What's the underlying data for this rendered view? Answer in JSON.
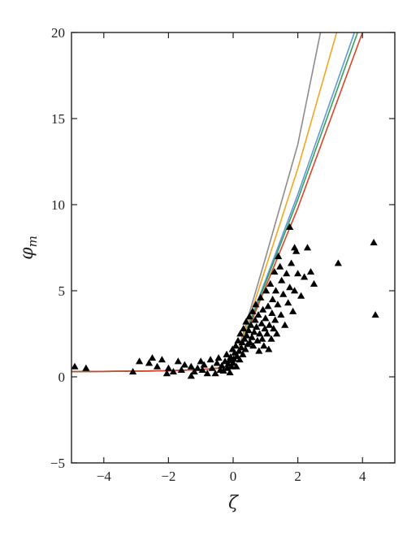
{
  "chart_data": {
    "type": "scatter",
    "title": "",
    "xlabel": "ζ",
    "ylabel": "φ",
    "ylabel_subscript": "m",
    "xlim": [
      -5,
      5
    ],
    "ylim": [
      -5,
      20
    ],
    "xticks": [
      -4,
      -2,
      0,
      2,
      4
    ],
    "yticks": [
      -5,
      0,
      5,
      10,
      15,
      20
    ],
    "xtick_labels": [
      "−4",
      "−2",
      "0",
      "2",
      "4"
    ],
    "ytick_labels": [
      "−5",
      "0",
      "5",
      "10",
      "15",
      "20"
    ],
    "grid": false,
    "legend": "none",
    "scatter": {
      "marker": "triangle",
      "color": "#000000",
      "points": [
        [
          -4.9,
          0.6
        ],
        [
          -4.55,
          0.5
        ],
        [
          -3.1,
          0.3
        ],
        [
          -2.9,
          0.9
        ],
        [
          -2.6,
          0.8
        ],
        [
          -2.5,
          1.1
        ],
        [
          -2.35,
          0.6
        ],
        [
          -2.2,
          1.0
        ],
        [
          -2.05,
          0.2
        ],
        [
          -2.0,
          0.5
        ],
        [
          -1.85,
          0.3
        ],
        [
          -1.7,
          0.9
        ],
        [
          -1.6,
          0.4
        ],
        [
          -1.5,
          0.7
        ],
        [
          -1.3,
          0.6
        ],
        [
          -1.3,
          0.05
        ],
        [
          -1.2,
          0.3
        ],
        [
          -1.1,
          0.5
        ],
        [
          -1.0,
          0.9
        ],
        [
          -0.95,
          0.4
        ],
        [
          -0.9,
          0.7
        ],
        [
          -0.8,
          0.2
        ],
        [
          -0.7,
          1.0
        ],
        [
          -0.65,
          0.5
        ],
        [
          -0.55,
          0.2
        ],
        [
          -0.5,
          0.8
        ],
        [
          -0.45,
          1.1
        ],
        [
          -0.4,
          0.4
        ],
        [
          -0.35,
          0.65
        ],
        [
          -0.3,
          0.35
        ],
        [
          -0.25,
          0.9
        ],
        [
          -0.2,
          1.3
        ],
        [
          -0.18,
          0.5
        ],
        [
          -0.15,
          0.75
        ],
        [
          -0.12,
          0.95
        ],
        [
          -0.1,
          0.25
        ],
        [
          -0.08,
          1.15
        ],
        [
          -0.05,
          0.6
        ],
        [
          -0.02,
          1.6
        ],
        [
          0.0,
          0.8
        ],
        [
          0.02,
          1.05
        ],
        [
          0.05,
          1.4
        ],
        [
          0.08,
          1.8
        ],
        [
          0.1,
          0.6
        ],
        [
          0.12,
          1.2
        ],
        [
          0.15,
          2.1
        ],
        [
          0.18,
          1.5
        ],
        [
          0.2,
          1.0
        ],
        [
          0.22,
          2.5
        ],
        [
          0.25,
          1.7
        ],
        [
          0.28,
          2.0
        ],
        [
          0.3,
          1.3
        ],
        [
          0.32,
          2.8
        ],
        [
          0.35,
          2.2
        ],
        [
          0.38,
          1.6
        ],
        [
          0.4,
          3.2
        ],
        [
          0.42,
          2.4
        ],
        [
          0.45,
          1.9
        ],
        [
          0.48,
          2.7
        ],
        [
          0.5,
          3.5
        ],
        [
          0.52,
          2.0
        ],
        [
          0.55,
          3.0
        ],
        [
          0.58,
          2.3
        ],
        [
          0.6,
          3.8
        ],
        [
          0.62,
          1.8
        ],
        [
          0.65,
          2.6
        ],
        [
          0.68,
          3.3
        ],
        [
          0.7,
          4.2
        ],
        [
          0.72,
          2.9
        ],
        [
          0.75,
          2.1
        ],
        [
          0.78,
          3.6
        ],
        [
          0.8,
          1.5
        ],
        [
          0.82,
          2.5
        ],
        [
          0.85,
          4.6
        ],
        [
          0.88,
          3.1
        ],
        [
          0.9,
          2.2
        ],
        [
          0.92,
          3.9
        ],
        [
          0.95,
          1.8
        ],
        [
          0.98,
          2.8
        ],
        [
          1.0,
          3.4
        ],
        [
          1.02,
          5.0
        ],
        [
          1.05,
          2.5
        ],
        [
          1.08,
          4.1
        ],
        [
          1.1,
          1.6
        ],
        [
          1.12,
          3.0
        ],
        [
          1.15,
          5.4
        ],
        [
          1.18,
          2.2
        ],
        [
          1.2,
          3.7
        ],
        [
          1.22,
          4.5
        ],
        [
          1.25,
          2.8
        ],
        [
          1.28,
          6.1
        ],
        [
          1.3,
          3.3
        ],
        [
          1.32,
          5.0
        ],
        [
          1.35,
          2.5
        ],
        [
          1.38,
          4.2
        ],
        [
          1.4,
          7.0
        ],
        [
          1.45,
          6.4
        ],
        [
          1.48,
          3.6
        ],
        [
          1.5,
          5.6
        ],
        [
          1.55,
          4.8
        ],
        [
          1.6,
          3.0
        ],
        [
          1.65,
          6.0
        ],
        [
          1.7,
          4.3
        ],
        [
          1.75,
          5.2
        ],
        [
          1.8,
          6.6
        ],
        [
          1.85,
          3.8
        ],
        [
          1.9,
          5.0
        ],
        [
          1.95,
          7.3
        ],
        [
          2.0,
          6.0
        ],
        [
          2.1,
          4.7
        ],
        [
          2.2,
          5.8
        ],
        [
          2.3,
          7.5
        ],
        [
          2.4,
          6.1
        ],
        [
          2.5,
          5.4
        ],
        [
          1.75,
          8.7
        ],
        [
          1.9,
          7.5
        ],
        [
          3.25,
          6.6
        ],
        [
          4.35,
          7.8
        ],
        [
          4.4,
          3.6
        ]
      ]
    },
    "series": [
      {
        "color": "#8c8c8c",
        "x": [
          -5,
          -2,
          -1,
          -0.5,
          -0.2,
          0,
          0.05,
          0.1,
          0.2,
          0.3,
          0.5,
          1.0,
          2.0,
          2.7
        ],
        "y": [
          0.3,
          0.35,
          0.42,
          0.5,
          0.6,
          0.75,
          0.95,
          1.25,
          1.85,
          2.45,
          3.7,
          6.9,
          13.5,
          20.0
        ]
      },
      {
        "color": "#f2a623",
        "x": [
          -5,
          -2,
          -1,
          -0.5,
          -0.2,
          0,
          0.05,
          0.1,
          0.2,
          0.3,
          0.5,
          1.0,
          2.0,
          3.2
        ],
        "y": [
          0.3,
          0.35,
          0.42,
          0.5,
          0.6,
          0.75,
          0.93,
          1.2,
          1.75,
          2.3,
          3.4,
          6.3,
          12.1,
          20.0
        ]
      },
      {
        "color": "#5b9bd5",
        "x": [
          -5,
          -2,
          -1,
          -0.5,
          -0.2,
          0,
          0.05,
          0.1,
          0.2,
          0.3,
          0.5,
          1.0,
          2.0,
          3.75
        ],
        "y": [
          0.3,
          0.35,
          0.42,
          0.5,
          0.6,
          0.75,
          0.9,
          1.15,
          1.65,
          2.15,
          3.15,
          5.6,
          10.6,
          20.0
        ]
      },
      {
        "color": "#3a9e5a",
        "x": [
          -5,
          -2,
          -1,
          -0.5,
          -0.2,
          0,
          0.05,
          0.1,
          0.2,
          0.3,
          0.5,
          1.0,
          2.0,
          3.85
        ],
        "y": [
          0.3,
          0.35,
          0.42,
          0.5,
          0.6,
          0.75,
          0.9,
          1.13,
          1.6,
          2.1,
          3.05,
          5.45,
          10.3,
          20.0
        ]
      },
      {
        "color": "#d9452b",
        "x": [
          -5,
          -2,
          -1,
          -0.5,
          -0.2,
          0,
          0.05,
          0.1,
          0.2,
          0.3,
          0.5,
          1.0,
          2.0,
          4.0
        ],
        "y": [
          0.3,
          0.35,
          0.42,
          0.5,
          0.6,
          0.75,
          0.88,
          1.1,
          1.55,
          2.0,
          2.9,
          5.2,
          9.8,
          20.0
        ]
      }
    ]
  }
}
